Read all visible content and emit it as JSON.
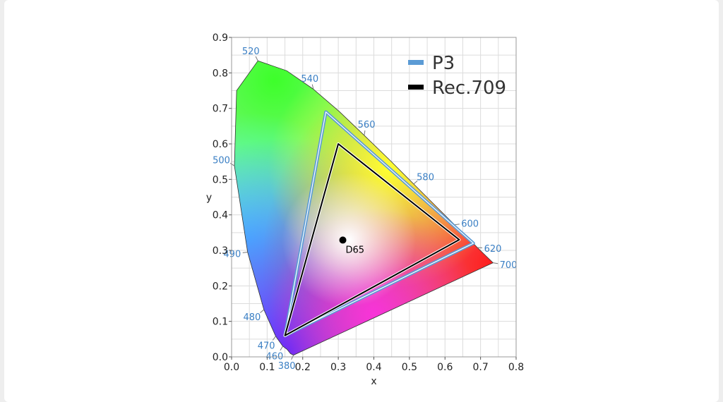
{
  "chart_data": {
    "type": "scatter",
    "xlabel": "x",
    "ylabel": "y",
    "xlim": [
      0.0,
      0.8
    ],
    "ylim": [
      0.0,
      0.9
    ],
    "x_ticks": [
      "0.0",
      "0.1",
      "0.2",
      "0.3",
      "0.4",
      "0.5",
      "0.6",
      "0.7",
      "0.8"
    ],
    "y_ticks": [
      "0.0",
      "0.1",
      "0.2",
      "0.3",
      "0.4",
      "0.5",
      "0.6",
      "0.7",
      "0.8",
      "0.9"
    ],
    "grid": true,
    "legend_position": "top-right",
    "spectral_locus": [
      [
        0.174,
        0.005
      ],
      [
        0.166,
        0.009
      ],
      [
        0.156,
        0.021
      ],
      [
        0.144,
        0.03
      ],
      [
        0.124,
        0.058
      ],
      [
        0.091,
        0.133
      ],
      [
        0.045,
        0.295
      ],
      [
        0.008,
        0.538
      ],
      [
        0.014,
        0.75
      ],
      [
        0.074,
        0.834
      ],
      [
        0.155,
        0.806
      ],
      [
        0.23,
        0.754
      ],
      [
        0.302,
        0.692
      ],
      [
        0.373,
        0.624
      ],
      [
        0.444,
        0.555
      ],
      [
        0.512,
        0.487
      ],
      [
        0.575,
        0.424
      ],
      [
        0.627,
        0.372
      ],
      [
        0.666,
        0.334
      ],
      [
        0.691,
        0.308
      ],
      [
        0.735,
        0.265
      ]
    ],
    "wavelength_labels": [
      {
        "label": "380",
        "x": 0.174,
        "y": 0.005
      },
      {
        "label": "460",
        "x": 0.144,
        "y": 0.03
      },
      {
        "label": "470",
        "x": 0.124,
        "y": 0.058
      },
      {
        "label": "480",
        "x": 0.091,
        "y": 0.133
      },
      {
        "label": "490",
        "x": 0.045,
        "y": 0.295
      },
      {
        "label": "500",
        "x": 0.008,
        "y": 0.538
      },
      {
        "label": "520",
        "x": 0.074,
        "y": 0.834
      },
      {
        "label": "540",
        "x": 0.23,
        "y": 0.754
      },
      {
        "label": "560",
        "x": 0.373,
        "y": 0.624
      },
      {
        "label": "580",
        "x": 0.512,
        "y": 0.487
      },
      {
        "label": "600",
        "x": 0.627,
        "y": 0.372
      },
      {
        "label": "620",
        "x": 0.691,
        "y": 0.308
      },
      {
        "label": "700",
        "x": 0.735,
        "y": 0.265
      }
    ],
    "series": [
      {
        "name": "P3",
        "color": "#5b9bd5",
        "points": [
          [
            0.68,
            0.32
          ],
          [
            0.265,
            0.69
          ],
          [
            0.15,
            0.06
          ]
        ]
      },
      {
        "name": "Rec.709",
        "color": "#000000",
        "points": [
          [
            0.64,
            0.33
          ],
          [
            0.3,
            0.6
          ],
          [
            0.15,
            0.06
          ]
        ]
      }
    ],
    "white_point": {
      "label": "D65",
      "x": 0.3127,
      "y": 0.329
    }
  }
}
